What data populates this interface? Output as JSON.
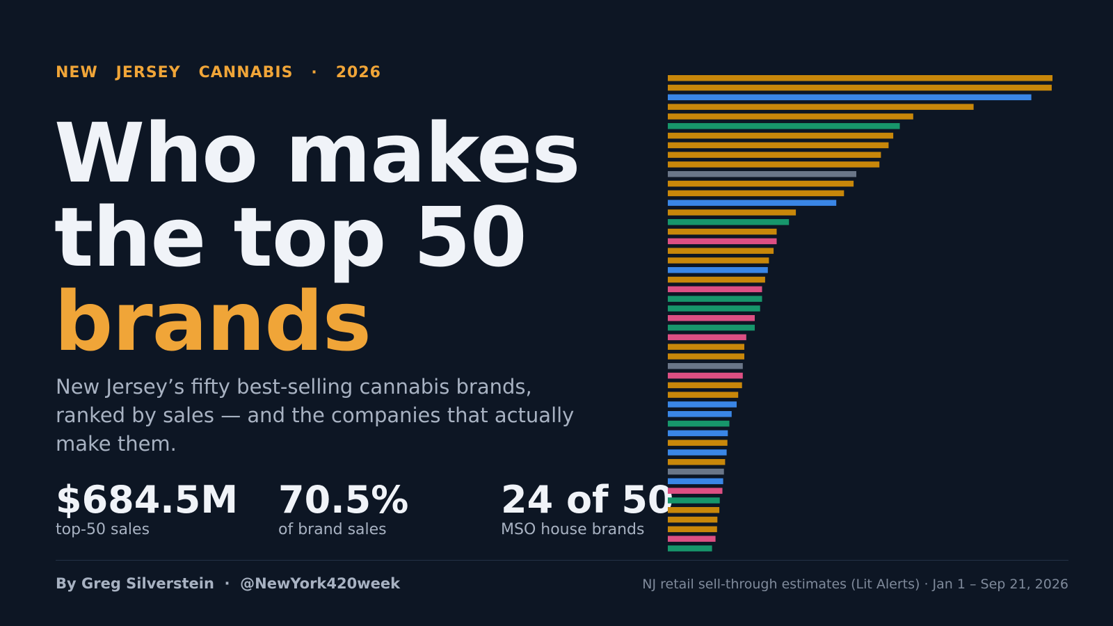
{
  "kicker": "NEW   JERSEY   CANNABIS   ·   2026",
  "headline": {
    "line1": "Who makes",
    "line2": "the top 50",
    "line3": "brands"
  },
  "subtitle": "New Jersey’s fifty best-selling cannabis brands, ranked by sales — and the companies that actually make them.",
  "stats": [
    {
      "value": "$684.5M",
      "label": "top-50 sales"
    },
    {
      "value": "70.5%",
      "label": "of brand sales"
    },
    {
      "value": "24 of 50",
      "label": "MSO house brands"
    }
  ],
  "byline": "By Greg Silverstein  ·  @NewYork420week",
  "source": "NJ retail sell-through estimates (Lit Alerts) · Jan 1 – Sep 21, 2026",
  "palette": {
    "orange": "#c8870a",
    "blue": "#3a86e6",
    "green": "#17966b",
    "pink": "#dd4f83",
    "gray": "#6a7688"
  },
  "chart_data": {
    "type": "bar",
    "orientation": "horizontal",
    "sort": "descending",
    "grid": false,
    "axes_visible": false,
    "title": "",
    "xlabel": "",
    "ylabel": "",
    "xlim": [
      0,
      100
    ],
    "values": [
      100,
      99.8,
      94.5,
      79.5,
      63.8,
      60.3,
      58.6,
      57.4,
      55.4,
      55,
      49,
      48.3,
      45.8,
      43.8,
      33.3,
      31.5,
      28.3,
      28.3,
      27.5,
      26.3,
      26,
      25.3,
      24.5,
      24.5,
      24,
      22.6,
      22.6,
      20.4,
      19.9,
      19.9,
      19.5,
      19.5,
      19.3,
      18.3,
      17.9,
      16.6,
      16,
      15.6,
      15.5,
      15.3,
      14.9,
      14.6,
      14.4,
      14.2,
      13.5,
      13.4,
      12.9,
      12.8,
      12.4,
      11.5
    ],
    "colors": [
      "orange",
      "orange",
      "blue",
      "orange",
      "orange",
      "green",
      "orange",
      "orange",
      "orange",
      "orange",
      "gray",
      "orange",
      "orange",
      "blue",
      "orange",
      "green",
      "orange",
      "pink",
      "orange",
      "orange",
      "blue",
      "orange",
      "pink",
      "green",
      "green",
      "pink",
      "green",
      "pink",
      "orange",
      "orange",
      "gray",
      "pink",
      "orange",
      "orange",
      "blue",
      "blue",
      "green",
      "blue",
      "orange",
      "blue",
      "orange",
      "gray",
      "blue",
      "pink",
      "green",
      "orange",
      "orange",
      "orange",
      "pink",
      "green"
    ]
  }
}
